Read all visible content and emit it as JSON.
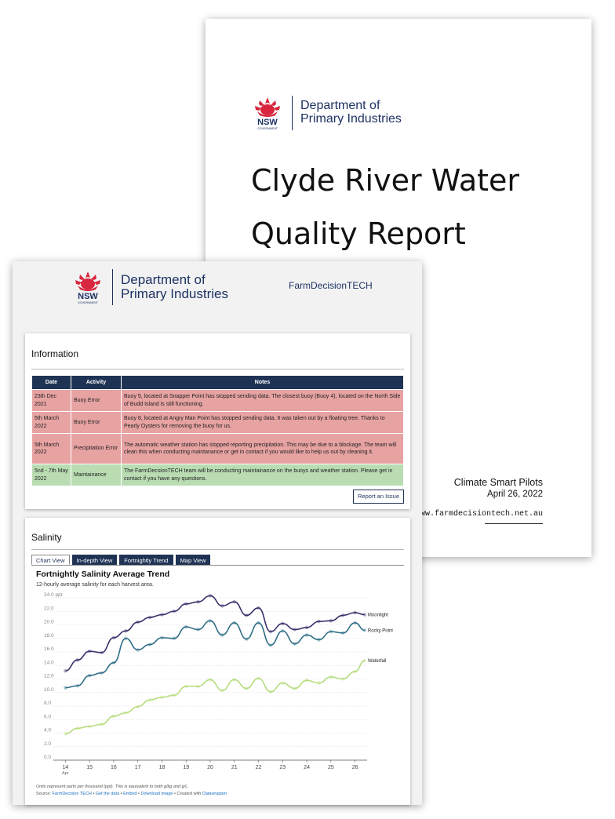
{
  "cover": {
    "logo": {
      "org_line1": "Department of",
      "org_line2": "Primary Industries",
      "wordmark": "NSW",
      "wordmark_sub": "GOVERNMENT"
    },
    "title": "Clyde River Water Quality Report",
    "subtitle": "Climate Smart Pilots",
    "date": "April 26, 2022",
    "url": "www.farmdecisiontech.net.au"
  },
  "dashboard": {
    "logo": {
      "org_line1": "Department of",
      "org_line2": "Primary Industries",
      "wordmark": "NSW",
      "wordmark_sub": "GOVERNMENT"
    },
    "brand": "FarmDecisionTECH",
    "information": {
      "title": "Information",
      "columns": [
        "Date",
        "Activity",
        "Notes"
      ],
      "rows": [
        {
          "status": "error",
          "date": "23th Dec 2021",
          "activity": "Buoy Error",
          "notes": "Buoy 5, located at Snapper Point has stopped sending data. The closest buoy (Buoy 4), located on the North Side of Budd Island is still functioning."
        },
        {
          "status": "error",
          "date": "5th March 2022",
          "activity": "Buoy Error",
          "notes": "Buoy 8, located at Angry Man Point has stopped sending data. It was taken out by a floating tree. Thanks to Pearly Oysters for removing the buoy for us."
        },
        {
          "status": "error",
          "date": "5th March 2022",
          "activity": "Precipitation Error",
          "notes": "The automatic weather station has stopped reporting precipitation. This may be due to a blockage. The team will clean this when conducting maintanance or get in contact if you would like to help us out by cleaning it."
        },
        {
          "status": "ok",
          "date": "5nd - 7th May 2022",
          "activity": "Maintainance",
          "notes": "The FarmDecsionTECH team will be conducting maintainance on the buoys and weather station. Please get in contact if you have any questions."
        }
      ],
      "report_button": "Report an Issue"
    },
    "salinity": {
      "title": "Salinity",
      "tabs": [
        "Chart View",
        "In-depth View",
        "Fortnightly Trend",
        "Map View"
      ],
      "active_tab": "Chart View"
    },
    "footer": {
      "note": "Units represent parts per thousand (ppt). This is equivalent to both g/kg and g/L.",
      "source_prefix": "Source: ",
      "source_name": "FarmDecision TECH",
      "sep1": " • ",
      "get_data": "Get the data",
      "sep2": " • ",
      "embed": "Embed",
      "sep3": " • ",
      "download": "Download image",
      "sep4": " • Created with ",
      "datawrapper": "Datawrapper"
    }
  },
  "colors": {
    "navy": "#1f3355",
    "error_row": "#e7a2a2",
    "ok_row": "#b9dcb2",
    "moonlight": "#3a2f6b",
    "rocky_point": "#2e6e86",
    "waterfall": "#b5dc7d",
    "waratah_red": "#d7263d"
  },
  "chart_data": {
    "type": "line",
    "title": "Fortnightly Salinity Average Trend",
    "subtitle": "12-hourly average salinity for each harvest area.",
    "y_unit_label": "24.0 ppt",
    "ylim": [
      0,
      24
    ],
    "y_ticks": [
      "0.0",
      "2.0",
      "4.0",
      "6.0",
      "8.0",
      "10.0",
      "12.0",
      "14.0",
      "16.0",
      "18.0",
      "20.0",
      "22.0"
    ],
    "xlim": [
      13.5,
      26.5
    ],
    "x_ticks": [
      "14",
      "15",
      "16",
      "17",
      "18",
      "19",
      "20",
      "21",
      "22",
      "23",
      "24",
      "25",
      "26"
    ],
    "x_sublabel": "Apr",
    "grid": true,
    "legend": "inline-right",
    "series": [
      {
        "name": "Moonlight",
        "color": "#3a2f6b",
        "x": [
          14,
          14.5,
          15,
          15.5,
          16,
          16.5,
          17,
          17.5,
          18,
          18.5,
          19,
          19.5,
          20,
          20.5,
          21,
          21.5,
          22,
          22.5,
          23,
          23.5,
          24,
          24.5,
          25,
          25.5,
          26,
          26.4
        ],
        "y": [
          13.2,
          14.8,
          16.1,
          15.9,
          18.1,
          19.1,
          20.4,
          21.1,
          21.5,
          22.0,
          23.1,
          23.4,
          24.3,
          22.8,
          23.4,
          21.4,
          22.5,
          19.0,
          20.2,
          19.3,
          19.6,
          20.5,
          20.6,
          21.4,
          21.8,
          21.5
        ]
      },
      {
        "name": "Rocky Point",
        "color": "#2e6e86",
        "x": [
          14,
          14.5,
          15,
          15.5,
          16,
          16.5,
          17,
          17.5,
          18,
          18.5,
          19,
          19.5,
          20,
          20.5,
          21,
          21.5,
          22,
          22.5,
          23,
          23.5,
          24,
          24.5,
          25,
          25.5,
          26,
          26.4
        ],
        "y": [
          10.7,
          11.0,
          12.5,
          12.9,
          14.4,
          18.0,
          16.3,
          17.1,
          18.1,
          18.0,
          19.7,
          19.3,
          20.6,
          18.5,
          20.3,
          17.9,
          20.3,
          17.0,
          19.1,
          17.2,
          18.5,
          17.8,
          19.0,
          18.8,
          20.3,
          19.2
        ]
      },
      {
        "name": "Waterfall",
        "color": "#b5dc7d",
        "x": [
          14,
          14.5,
          15,
          15.5,
          16,
          16.5,
          17,
          17.5,
          18,
          18.5,
          19,
          19.5,
          20,
          20.5,
          21,
          21.5,
          22,
          22.5,
          23,
          23.5,
          24,
          24.5,
          25,
          25.5,
          26,
          26.4
        ],
        "y": [
          3.9,
          4.7,
          5.0,
          5.3,
          6.5,
          7.0,
          7.9,
          8.9,
          9.3,
          9.6,
          10.9,
          10.9,
          11.9,
          10.3,
          11.9,
          10.6,
          12.1,
          10.1,
          11.4,
          10.6,
          11.8,
          11.4,
          12.3,
          12.0,
          13.1,
          14.7
        ]
      }
    ]
  }
}
